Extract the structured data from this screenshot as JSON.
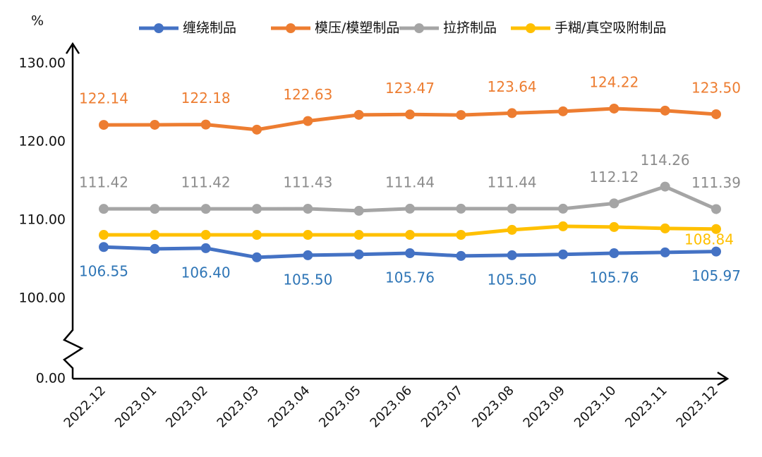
{
  "chart_data": {
    "type": "line",
    "y_label": "%",
    "categories": [
      "2022.12",
      "2023.01",
      "2023.02",
      "2023.03",
      "2023.04",
      "2023.05",
      "2023.06",
      "2023.07",
      "2023.08",
      "2023.09",
      "2023.10",
      "2023.11",
      "2023.12"
    ],
    "ylim": [
      0,
      132.5
    ],
    "axis_break": [
      0,
      100
    ],
    "yticks": [
      {
        "value": 0,
        "label": "0.00"
      },
      {
        "value": 100,
        "label": "100.00"
      },
      {
        "value": 110,
        "label": "110.00"
      },
      {
        "value": 120,
        "label": "120.00"
      },
      {
        "value": 130,
        "label": "130.00"
      }
    ],
    "series": [
      {
        "name": "缠绕制品",
        "color": "#4472c4",
        "label_color": "#2e75b6",
        "values": [
          106.55,
          106.31,
          106.4,
          105.23,
          105.5,
          105.6,
          105.76,
          105.41,
          105.5,
          105.6,
          105.76,
          105.86,
          105.97
        ],
        "value_labels": [
          "106.55",
          null,
          "106.40",
          null,
          "105.50",
          null,
          "105.76",
          null,
          "105.50",
          null,
          "105.76",
          null,
          "105.97"
        ]
      },
      {
        "name": "模压/模塑制品",
        "color": "#ed7d31",
        "label_color": "#ed7d31",
        "values": [
          122.14,
          122.15,
          122.18,
          121.53,
          122.63,
          123.42,
          123.47,
          123.4,
          123.64,
          123.87,
          124.22,
          123.96,
          123.5
        ],
        "value_labels": [
          "122.14",
          null,
          "122.18",
          null,
          "122.63",
          null,
          "123.47",
          null,
          "123.64",
          null,
          "124.22",
          null,
          "123.50"
        ]
      },
      {
        "name": "拉挤制品",
        "color": "#a5a5a5",
        "label_color": "#8c8c8c",
        "values": [
          111.42,
          111.42,
          111.42,
          111.42,
          111.43,
          111.17,
          111.44,
          111.44,
          111.44,
          111.44,
          112.12,
          114.26,
          111.39
        ],
        "value_labels": [
          "111.42",
          null,
          "111.42",
          null,
          "111.43",
          null,
          "111.44",
          null,
          "111.44",
          null,
          "112.12",
          "114.26",
          "111.39"
        ]
      },
      {
        "name": "手糊/真空吸附制品",
        "color": "#ffc000",
        "label_color": "#ffc000",
        "values": [
          108.1,
          108.1,
          108.1,
          108.1,
          108.1,
          108.1,
          108.1,
          108.1,
          108.74,
          109.19,
          109.1,
          108.92,
          108.84
        ],
        "value_labels": [
          null,
          null,
          null,
          null,
          null,
          null,
          null,
          null,
          null,
          null,
          null,
          null,
          "108.84"
        ]
      }
    ]
  }
}
